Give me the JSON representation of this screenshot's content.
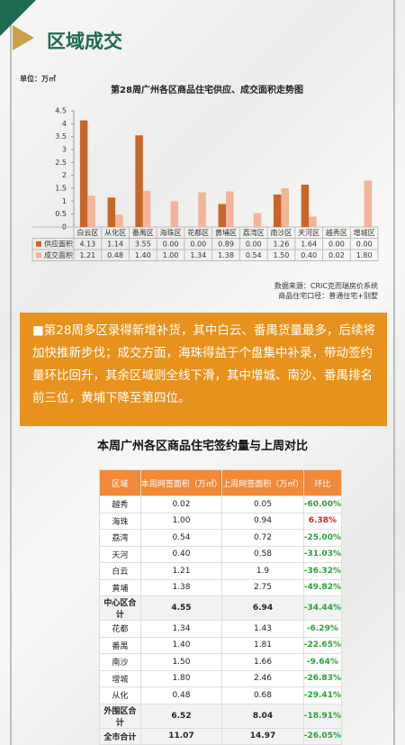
{
  "header": {
    "title": "区域成交"
  },
  "chart_data": {
    "type": "bar",
    "unit": "单位：万㎡",
    "title": "第28周广州各区商品住宅供应、成交面积走势图",
    "categories": [
      "白云区",
      "从化区",
      "番禺区",
      "海珠区",
      "花都区",
      "黄埔区",
      "荔湾区",
      "南沙区",
      "天河区",
      "越秀区",
      "增城区"
    ],
    "series": [
      {
        "name": "供应面积",
        "color": "#c8662a",
        "values": [
          4.13,
          1.14,
          3.55,
          0,
          0,
          0.89,
          0,
          1.26,
          1.64,
          0,
          0
        ],
        "value_labels": [
          "4.13",
          "1.14",
          "3.55",
          "0.00",
          "0.00",
          "0.89",
          "0.00",
          "1.26",
          "1.64",
          "0.00",
          "0.00"
        ]
      },
      {
        "name": "成交面积",
        "color": "#f2b49a",
        "values": [
          1.21,
          0.48,
          1.4,
          1,
          1.34,
          1.38,
          0.54,
          1.5,
          0.4,
          0.02,
          1.8
        ],
        "value_labels": [
          "1.21",
          "0.48",
          "1.40",
          "1.00",
          "1.34",
          "1.38",
          "0.54",
          "1.50",
          "0.40",
          "0.02",
          "1.80"
        ]
      }
    ],
    "ylim": [
      0,
      4.5
    ],
    "yticks": [
      0,
      0.5,
      1,
      1.5,
      2,
      2.5,
      3,
      3.5,
      4,
      4.5
    ]
  },
  "source": [
    "数据来源：CRIC克而瑞房价系统",
    "商品住宅口径：普通住宅+别墅"
  ],
  "summary": "■第28周多区录得新增补货，其中白云、番禺货量最多，后续将加快推新步伐；成交方面，海珠得益于个盘集中补录，带动签约量环比回升，其余区域则全线下滑，其中增城、南沙、番禺排名前三位，黄埔下降至第四位。",
  "table": {
    "title": "本周广州各区商品住宅签约量与上周对比",
    "headers": [
      "区域",
      "本周网签面积（万㎡）",
      "上周网签面积（万㎡）",
      "环比"
    ],
    "rows": [
      [
        "越秀",
        "0.02",
        "0.05",
        "-60.00%"
      ],
      [
        "海珠",
        "1.00",
        "0.94",
        "6.38%"
      ],
      [
        "荔湾",
        "0.54",
        "0.72",
        "-25.00%"
      ],
      [
        "天河",
        "0.40",
        "0.58",
        "-31.03%"
      ],
      [
        "白云",
        "1.21",
        "1.9",
        "-36.32%"
      ],
      [
        "黄埔",
        "1.38",
        "2.75",
        "-49.82%"
      ],
      [
        "中心区合计",
        "4.55",
        "6.94",
        "-34.44%"
      ],
      [
        "花都",
        "1.34",
        "1.43",
        "-6.29%"
      ],
      [
        "番禺",
        "1.40",
        "1.81",
        "-22.65%"
      ],
      [
        "南沙",
        "1.50",
        "1.66",
        "-9.64%"
      ],
      [
        "增城",
        "1.80",
        "2.46",
        "-26.83%"
      ],
      [
        "从化",
        "0.48",
        "0.68",
        "-29.41%"
      ],
      [
        "外围区合计",
        "6.52",
        "8.04",
        "-18.91%"
      ],
      [
        "全市合计",
        "11.07",
        "14.97",
        "-26.05%"
      ]
    ],
    "subtotal_rows": [
      6,
      12,
      13
    ]
  }
}
